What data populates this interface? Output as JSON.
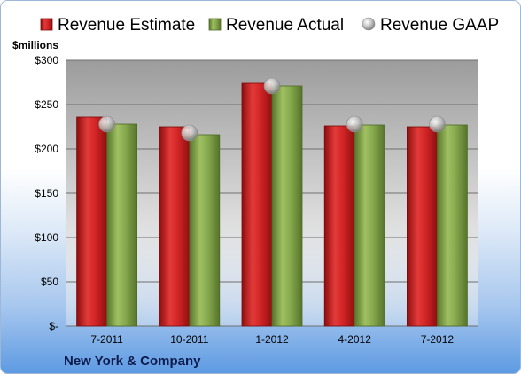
{
  "chart_data": {
    "type": "bar",
    "title": "",
    "units_label": "$millions",
    "footer_label": "New York & Company",
    "categories": [
      "7-2011",
      "10-2011",
      "1-2012",
      "4-2012",
      "7-2012"
    ],
    "series": [
      {
        "name": "Revenue Estimate",
        "kind": "bar",
        "color": "#cc1f1f",
        "values": [
          236,
          225,
          274,
          226,
          225
        ]
      },
      {
        "name": "Revenue Actual",
        "kind": "bar",
        "color": "#7fa24a",
        "values": [
          228,
          216,
          271,
          227,
          227
        ]
      },
      {
        "name": "Revenue GAAP",
        "kind": "marker",
        "color": "#b8b8b8",
        "values": [
          228,
          218,
          271,
          228,
          228
        ]
      }
    ],
    "ylim": [
      0,
      300
    ],
    "yticks": [
      0,
      50,
      100,
      150,
      200,
      250,
      300
    ],
    "ytick_labels": [
      "$-",
      "$50",
      "$100",
      "$150",
      "$200",
      "$250",
      "$300"
    ],
    "grid": true,
    "legend_position": "top"
  }
}
